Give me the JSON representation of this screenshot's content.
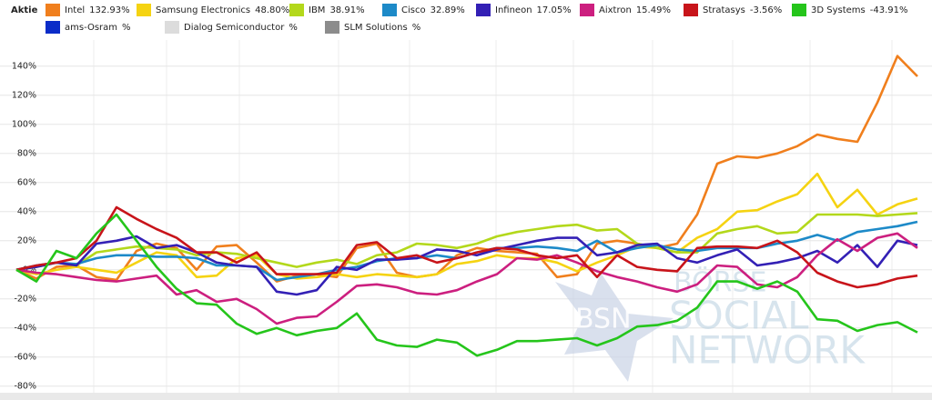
{
  "chart_data": {
    "type": "line",
    "legend_header": "Aktie",
    "series": [
      {
        "name": "Intel",
        "change_label": "132.93%",
        "color": "#f07f1d",
        "values": [
          0,
          -6,
          2,
          3,
          -5,
          -7,
          13,
          18,
          15,
          0,
          16,
          17,
          5,
          -8,
          -4,
          -3,
          -5,
          15,
          18,
          -2,
          -5,
          -3,
          10,
          15,
          13,
          12,
          11,
          -5,
          -3,
          18,
          20,
          18,
          15,
          18,
          38,
          73,
          78,
          77,
          80,
          85,
          93,
          90,
          88,
          115,
          147,
          133
        ]
      },
      {
        "name": "Samsung Electronics",
        "change_label": "48.80%",
        "color": "#f5d312",
        "values": [
          0,
          -3,
          0,
          2,
          0,
          -2,
          5,
          12,
          10,
          -5,
          -4,
          8,
          10,
          -3,
          -6,
          -5,
          -3,
          -5,
          -3,
          -4,
          -5,
          -3,
          4,
          6,
          10,
          8,
          8,
          5,
          -1,
          5,
          10,
          16,
          15,
          12,
          22,
          28,
          40,
          41,
          47,
          52,
          66,
          43,
          55,
          38,
          45,
          49
        ]
      },
      {
        "name": "IBM",
        "change_label": "38.91%",
        "color": "#b3d81b",
        "values": [
          0,
          2,
          5,
          3,
          12,
          14,
          16,
          15,
          14,
          10,
          12,
          11,
          8,
          5,
          2,
          5,
          7,
          4,
          10,
          12,
          18,
          17,
          15,
          18,
          23,
          26,
          28,
          30,
          31,
          27,
          28,
          18,
          15,
          12,
          12,
          25,
          28,
          30,
          25,
          26,
          38,
          38,
          38,
          37,
          38,
          39
        ]
      },
      {
        "name": "Cisco",
        "change_label": "32.89%",
        "color": "#1d8ac8",
        "values": [
          0,
          3,
          5,
          4,
          8,
          10,
          10,
          9,
          9,
          8,
          3,
          3,
          2,
          -7,
          -5,
          -3,
          0,
          2,
          6,
          8,
          8,
          10,
          8,
          12,
          15,
          15,
          16,
          15,
          13,
          20,
          12,
          15,
          17,
          14,
          13,
          15,
          15,
          15,
          18,
          20,
          24,
          20,
          26,
          28,
          30,
          33
        ]
      },
      {
        "name": "Infineon",
        "change_label": "17.05%",
        "color": "#3320b5",
        "values": [
          0,
          2,
          5,
          3,
          18,
          20,
          23,
          15,
          17,
          12,
          5,
          3,
          2,
          -15,
          -17,
          -14,
          2,
          0,
          7,
          7,
          8,
          14,
          13,
          10,
          14,
          17,
          20,
          22,
          22,
          10,
          12,
          17,
          18,
          8,
          5,
          10,
          14,
          3,
          5,
          8,
          13,
          5,
          17,
          2,
          20,
          17
        ]
      },
      {
        "name": "Aixtron",
        "change_label": "15.49%",
        "color": "#cc1f7f",
        "values": [
          0,
          -2,
          -3,
          -5,
          -7,
          -8,
          -6,
          -4,
          -17,
          -14,
          -22,
          -20,
          -27,
          -37,
          -33,
          -32,
          -22,
          -11,
          -10,
          -12,
          -16,
          -17,
          -14,
          -8,
          -3,
          8,
          7,
          10,
          5,
          -1,
          -5,
          -8,
          -12,
          -15,
          -10,
          3,
          2,
          -10,
          -12,
          -5,
          10,
          21,
          13,
          22,
          25,
          15
        ]
      },
      {
        "name": "Stratasys",
        "change_label": "-3.56%",
        "color": "#c8141a",
        "values": [
          0,
          3,
          5,
          8,
          20,
          43,
          35,
          28,
          22,
          12,
          12,
          5,
          12,
          -3,
          -3,
          -3,
          -2,
          17,
          19,
          8,
          10,
          5,
          8,
          12,
          15,
          14,
          10,
          8,
          10,
          -5,
          10,
          2,
          0,
          -1,
          15,
          16,
          16,
          15,
          20,
          12,
          -2,
          -8,
          -12,
          -10,
          -6,
          -4
        ]
      },
      {
        "name": "3D Systems",
        "change_label": "-43.91%",
        "color": "#25c51b",
        "values": [
          0,
          -8,
          13,
          8,
          25,
          38,
          20,
          2,
          -13,
          -23,
          -24,
          -37,
          -44,
          -40,
          -45,
          -42,
          -40,
          -30,
          -48,
          -52,
          -53,
          -48,
          -50,
          -59,
          -55,
          -49,
          -49,
          -48,
          -47,
          -52,
          -47,
          -39,
          -38,
          -35,
          -26,
          -8,
          -8,
          -13,
          -8,
          -15,
          -34,
          -35,
          -42,
          -38,
          -36,
          -43
        ]
      },
      {
        "name": "ams-Osram",
        "change_label": "%",
        "color": "#0b2cc8"
      },
      {
        "name": "Dialog Semiconductor",
        "change_label": "%",
        "color": "#dcdcdc"
      },
      {
        "name": "SLM Solutions",
        "change_label": "%",
        "color": "#8c8c8c"
      }
    ],
    "ylim": [
      -82,
      158
    ],
    "yticks": [
      {
        "value": -80,
        "label": "-80%"
      },
      {
        "value": -60,
        "label": "-60%"
      },
      {
        "value": -40,
        "label": "-40%"
      },
      {
        "value": -20,
        "label": "-20%"
      },
      {
        "value": 0,
        "label": "0%"
      },
      {
        "value": 20,
        "label": "20%"
      },
      {
        "value": 40,
        "label": "40%"
      },
      {
        "value": 60,
        "label": "60%"
      },
      {
        "value": 80,
        "label": "80%"
      },
      {
        "value": 100,
        "label": "100%"
      },
      {
        "value": 120,
        "label": "120%"
      },
      {
        "value": 140,
        "label": "140%"
      }
    ],
    "grid": true,
    "watermark": {
      "logo": "BSN",
      "lines": [
        "BÖRSE",
        "SOCIAL",
        "NETWORK"
      ]
    }
  }
}
